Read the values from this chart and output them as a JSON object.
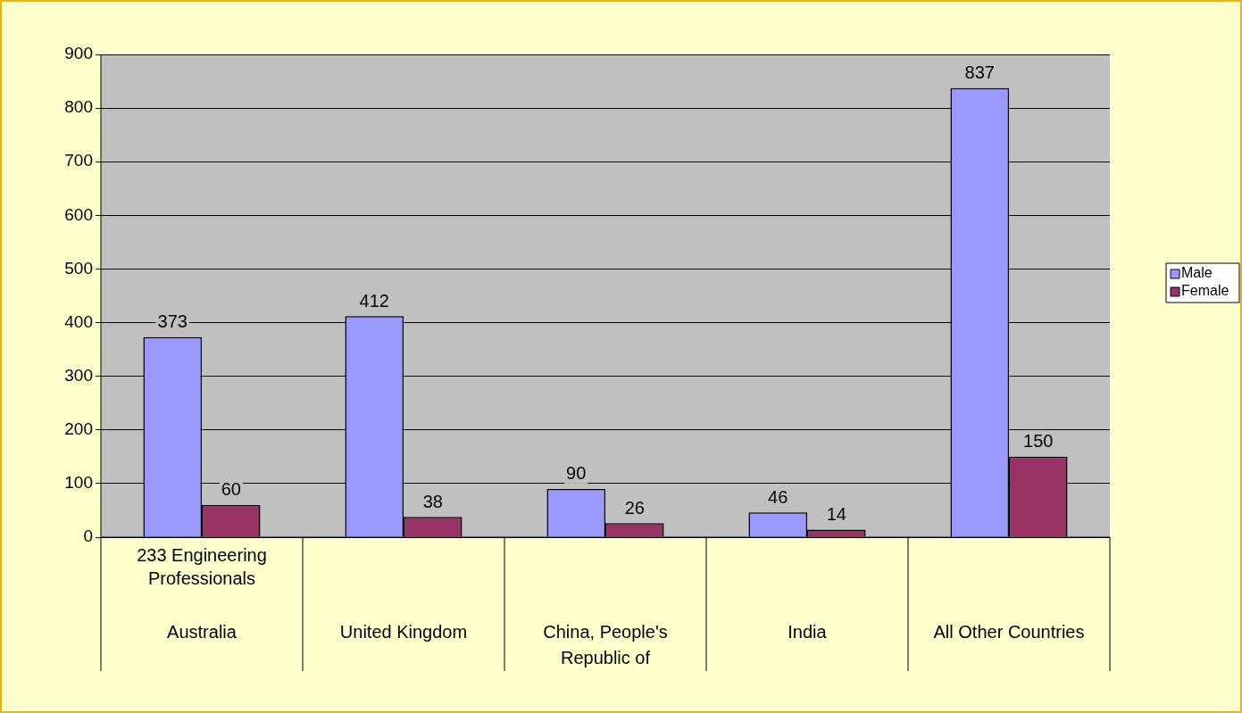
{
  "chart_data": {
    "type": "bar",
    "categories": [
      "Australia",
      "United Kingdom",
      "China, People's Republic of",
      "India",
      "All Other Countries"
    ],
    "series": [
      {
        "name": "Male",
        "color": "#9999ff",
        "values": [
          373,
          412,
          90,
          46,
          837
        ]
      },
      {
        "name": "Female",
        "color": "#993366",
        "values": [
          60,
          38,
          26,
          14,
          150
        ]
      }
    ],
    "annotations": [
      "233 Engineering Professionals"
    ],
    "ylim": [
      0,
      900
    ],
    "yticks": [
      0,
      100,
      200,
      300,
      400,
      500,
      600,
      700,
      800,
      900
    ],
    "grid": "y",
    "legend": "right",
    "data_labels": true
  }
}
